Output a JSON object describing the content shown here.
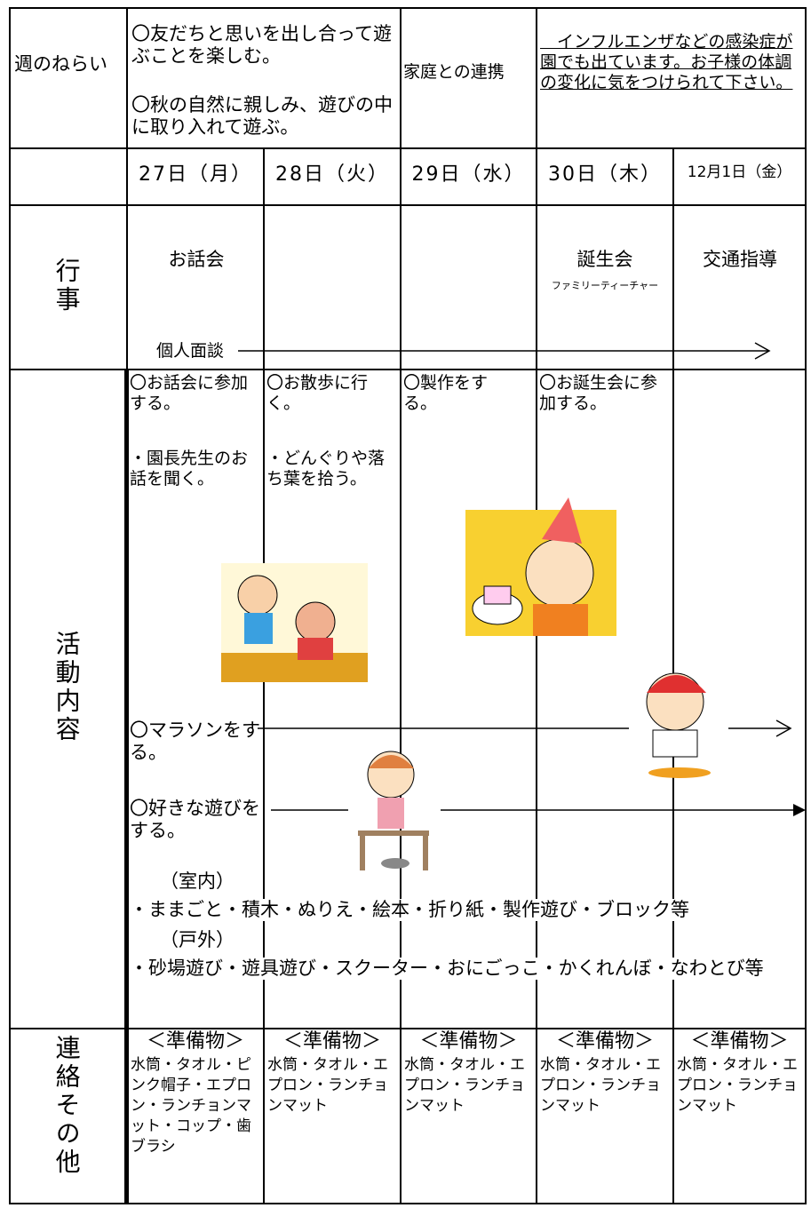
{
  "header": {
    "aim_label": "週のねらい",
    "aims": [
      "〇友だちと思いを出し合って遊ぶことを楽しむ。",
      "〇秋の自然に親しみ、遊びの中に取り入れて遊ぶ。"
    ],
    "home_label": "家庭との連携",
    "home_note": "　インフルエンザなどの感染症が園でも出ています。お子様の体調の変化に気をつけられて下さい。"
  },
  "days": [
    "27日（月）",
    "28日（火）",
    "29日（水）",
    "30日（木）",
    "12月1日（金）"
  ],
  "events": {
    "label": "行事",
    "mon": "お話会",
    "thu": "誕生会",
    "thu_note": "ファミリーティーチャー",
    "fri": "交通指導",
    "interview": "個人面談"
  },
  "activities": {
    "label": "活動内容",
    "mon": [
      "〇お話会に参加する。",
      "・園長先生のお話を聞く。"
    ],
    "tue": [
      "〇お散歩に行く。",
      "・どんぐりや落ち葉を拾う。"
    ],
    "wed": [
      "〇製作をする。"
    ],
    "thu": [
      "〇お誕生会に参加する。"
    ],
    "marathon": "〇マラソンをする。",
    "free_play": "〇好きな遊びをする。",
    "indoor_label": "（室内）",
    "indoor": "・ままごと・積木・ぬりえ・絵本・折り紙・製作遊び・ブロック等",
    "outdoor_label": "（戸外）",
    "outdoor": "・砂場遊び・遊具遊び・スクーター・おにごっこ・かくれんぼ・なわとび等"
  },
  "contacts": {
    "label": "連絡その他",
    "items": [
      {
        "heading": "＜準備物＞",
        "text": "水筒・タオル・ピンク帽子・エプロン・ランチョンマット・コップ・歯ブラシ"
      },
      {
        "heading": "＜準備物＞",
        "text": "水筒・タオル・エプロン・ランチョンマット"
      },
      {
        "heading": "＜準備物＞",
        "text": "水筒・タオル・エプロン・ランチョンマット"
      },
      {
        "heading": "＜準備物＞",
        "text": "水筒・タオル・エプロン・ランチョンマット"
      },
      {
        "heading": "＜準備物＞",
        "text": "水筒・タオル・エプロン・ランチョンマット"
      }
    ]
  }
}
